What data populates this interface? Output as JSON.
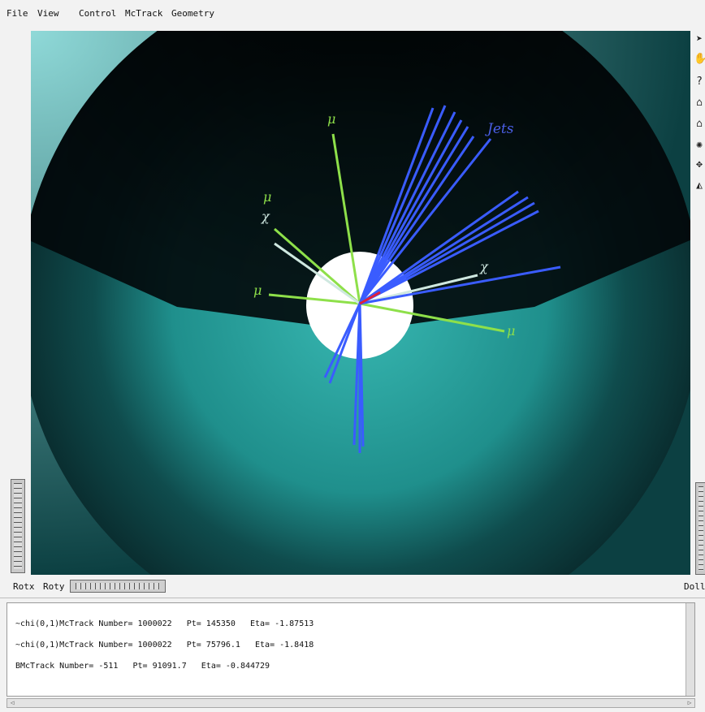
{
  "menu": {
    "file": "File",
    "view": "View",
    "control": "Control",
    "mctrack": "McTrack",
    "geometry": "Geometry"
  },
  "viewer": {
    "labels": {
      "jets": "Jets",
      "mu": "μ",
      "chi": "χ"
    },
    "colors": {
      "jets": "#3a5cff",
      "muon": "#8ee04a",
      "chi": "#cfe8e0",
      "background": "#050b0c",
      "disk": "#2aa6a4"
    }
  },
  "toolbar": {
    "icons": [
      "pointer-icon",
      "hand-rotate-icon",
      "help-icon",
      "home-icon",
      "set-home-icon",
      "view-all-icon",
      "seek-icon",
      "perspective-icon"
    ]
  },
  "controls": {
    "rotx": "Rotx",
    "roty": "Roty",
    "dolly": "Dolly"
  },
  "console": {
    "lines": [
      "~chi(0,1)McTrack Number= 1000022   Pt= 145350   Eta= -1.87513",
      "~chi(0,1)McTrack Number= 1000022   Pt= 75796.1   Eta= -1.8418",
      "BMcTrack Number= -511   Pt= 91091.7   Eta= -0.844729"
    ]
  }
}
